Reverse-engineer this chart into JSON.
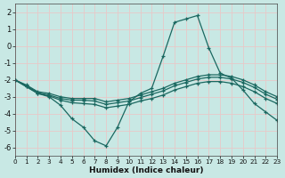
{
  "xlabel": "Humidex (Indice chaleur)",
  "xlim": [
    0,
    23
  ],
  "ylim": [
    -6.5,
    2.5
  ],
  "yticks": [
    2,
    1,
    0,
    -1,
    -2,
    -3,
    -4,
    -5,
    -6
  ],
  "xticks": [
    0,
    1,
    2,
    3,
    4,
    5,
    6,
    7,
    8,
    9,
    10,
    11,
    12,
    13,
    14,
    15,
    16,
    17,
    18,
    19,
    20,
    21,
    22,
    23
  ],
  "bg_color": "#c8e8e4",
  "grid_color": "#e8c8c8",
  "line_color": "#1a6860",
  "lines": [
    {
      "x": [
        0,
        1,
        2,
        3,
        4,
        5,
        6,
        7,
        8,
        9,
        10,
        11,
        12,
        13,
        14,
        15,
        16,
        17,
        18,
        19,
        20,
        21,
        22,
        23
      ],
      "y": [
        -2.0,
        -2.4,
        -2.8,
        -3.0,
        -3.5,
        -4.3,
        -4.8,
        -5.6,
        -5.9,
        -4.8,
        -3.3,
        -2.8,
        -2.5,
        -0.6,
        1.4,
        1.6,
        1.8,
        -0.1,
        -1.6,
        -1.9,
        -2.6,
        -3.4,
        -3.9,
        -4.4
      ]
    },
    {
      "x": [
        0,
        1,
        2,
        3,
        4,
        5,
        6,
        7,
        8,
        9,
        10,
        11,
        12,
        13,
        14,
        15,
        16,
        17,
        18,
        19,
        20,
        21,
        22,
        23
      ],
      "y": [
        -2.0,
        -2.3,
        -2.7,
        -2.8,
        -3.0,
        -3.1,
        -3.1,
        -3.1,
        -3.3,
        -3.2,
        -3.1,
        -2.9,
        -2.7,
        -2.5,
        -2.2,
        -2.0,
        -1.8,
        -1.7,
        -1.7,
        -1.8,
        -2.0,
        -2.3,
        -2.7,
        -3.0
      ]
    },
    {
      "x": [
        0,
        1,
        2,
        3,
        4,
        5,
        6,
        7,
        8,
        9,
        10,
        11,
        12,
        13,
        14,
        15,
        16,
        17,
        18,
        19,
        20,
        21,
        22,
        23
      ],
      "y": [
        -2.0,
        -2.35,
        -2.75,
        -2.9,
        -3.1,
        -3.2,
        -3.2,
        -3.25,
        -3.45,
        -3.35,
        -3.25,
        -3.05,
        -2.85,
        -2.65,
        -2.35,
        -2.15,
        -1.95,
        -1.85,
        -1.85,
        -1.95,
        -2.15,
        -2.45,
        -2.85,
        -3.15
      ]
    },
    {
      "x": [
        0,
        1,
        2,
        3,
        4,
        5,
        6,
        7,
        8,
        9,
        10,
        11,
        12,
        13,
        14,
        15,
        16,
        17,
        18,
        19,
        20,
        21,
        22,
        23
      ],
      "y": [
        -2.0,
        -2.4,
        -2.8,
        -2.95,
        -3.2,
        -3.35,
        -3.4,
        -3.45,
        -3.65,
        -3.55,
        -3.45,
        -3.25,
        -3.1,
        -2.9,
        -2.6,
        -2.4,
        -2.2,
        -2.1,
        -2.1,
        -2.2,
        -2.4,
        -2.7,
        -3.1,
        -3.4
      ]
    }
  ]
}
